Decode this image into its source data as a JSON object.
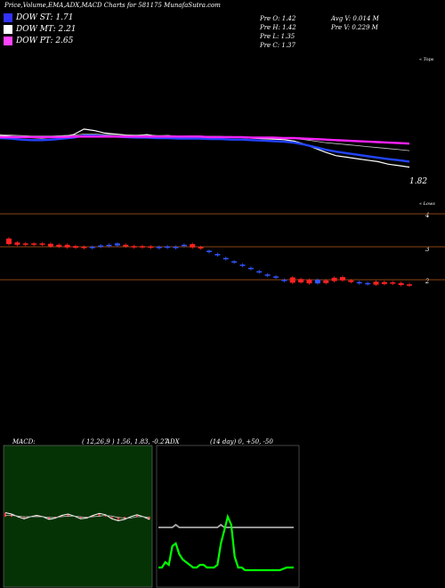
{
  "title": "Price,Volume,EMA,ADX,MACD Charts for 581175 MunafaSutra.com",
  "legend": [
    {
      "label": "DOW ST: 1.71",
      "color": "#3333ff"
    },
    {
      "label": "DOW MT: 2.21",
      "color": "#ffffff"
    },
    {
      "label": "DOW PT: 2.65",
      "color": "#ff44ff"
    }
  ],
  "stats": {
    "pre_o": "Pre   O: 1.42",
    "pre_h": "Pre   H: 1.42",
    "pre_l": "Pre   L: 1.35",
    "pre_c": "Pre   C: 1.37",
    "avg_v": "Avg V: 0.014   M",
    "pre_v": "Pre    V: 0.229 M"
  },
  "top_label": "« Tops",
  "low_label": "« Lows",
  "last_price": "1.82",
  "price_axis": {
    "ticks": [
      "4",
      "3",
      "2"
    ]
  },
  "macd_label": "MACD:",
  "macd_params": "( 12,26,9 ) 1.56,  1.83,  -0.27",
  "adx_label": "ADX",
  "adx_params": "(14  day) 0,  +50,  -50",
  "colors": {
    "ema_blue": "#2244ff",
    "ema_magenta": "#ff22ff",
    "up": "#3355ff",
    "down": "#ff2222",
    "grid_brown": "#8b4513",
    "macd_bg": "#063306",
    "adx_green": "#00ff00"
  },
  "chart_data": [
    {
      "type": "line",
      "name": "ema_panel",
      "ylim": [
        1.6,
        3.2
      ],
      "series": [
        {
          "values": [
            2.45,
            2.44,
            2.42,
            2.41,
            2.4,
            2.42,
            2.43,
            2.47,
            2.58,
            2.55,
            2.5,
            2.48,
            2.46,
            2.45,
            2.47,
            2.44,
            2.45,
            2.43,
            2.44,
            2.44,
            2.43,
            2.43,
            2.42,
            2.41,
            2.4,
            2.39,
            2.38,
            2.37,
            2.34,
            2.28,
            2.2,
            2.12,
            2.05,
            2.02,
            1.99,
            1.96,
            1.93,
            1.88,
            1.85,
            1.82
          ]
        },
        {
          "values": [
            2.4,
            2.39,
            2.37,
            2.36,
            2.36,
            2.37,
            2.39,
            2.41,
            2.45,
            2.45,
            2.44,
            2.43,
            2.42,
            2.41,
            2.41,
            2.4,
            2.4,
            2.39,
            2.39,
            2.39,
            2.38,
            2.38,
            2.37,
            2.37,
            2.36,
            2.35,
            2.34,
            2.33,
            2.31,
            2.27,
            2.22,
            2.17,
            2.13,
            2.1,
            2.07,
            2.04,
            2.01,
            1.98,
            1.96,
            1.93
          ]
        },
        {
          "values": [
            2.47,
            2.46,
            2.45,
            2.44,
            2.44,
            2.44,
            2.45,
            2.46,
            2.48,
            2.48,
            2.47,
            2.47,
            2.46,
            2.46,
            2.46,
            2.45,
            2.45,
            2.44,
            2.44,
            2.44,
            2.43,
            2.43,
            2.43,
            2.42,
            2.42,
            2.41,
            2.41,
            2.4,
            2.39,
            2.37,
            2.34,
            2.31,
            2.29,
            2.27,
            2.25,
            2.23,
            2.21,
            2.19,
            2.17,
            2.15
          ]
        },
        {
          "values": [
            2.42,
            2.42,
            2.42,
            2.42,
            2.42,
            2.42,
            2.42,
            2.43,
            2.43,
            2.43,
            2.43,
            2.43,
            2.43,
            2.43,
            2.43,
            2.43,
            2.43,
            2.43,
            2.43,
            2.43,
            2.42,
            2.42,
            2.42,
            2.42,
            2.41,
            2.41,
            2.41,
            2.4,
            2.4,
            2.39,
            2.38,
            2.37,
            2.36,
            2.35,
            2.34,
            2.33,
            2.32,
            2.31,
            2.3,
            2.29
          ]
        }
      ]
    },
    {
      "type": "candlestick",
      "name": "price_panel",
      "ylim": [
        1.5,
        4.1
      ],
      "candles": [
        [
          3.25,
          3.08,
          "d"
        ],
        [
          3.13,
          3.06,
          "d"
        ],
        [
          3.1,
          3.06,
          "d"
        ],
        [
          3.1,
          3.06,
          "d"
        ],
        [
          3.1,
          3.06,
          "d"
        ],
        [
          3.09,
          3.01,
          "d"
        ],
        [
          3.06,
          3.0,
          "d"
        ],
        [
          3.06,
          2.98,
          "d"
        ],
        [
          3.02,
          2.97,
          "d"
        ],
        [
          3.0,
          2.97,
          "d"
        ],
        [
          3.0,
          2.98,
          "u"
        ],
        [
          3.04,
          3.0,
          "u"
        ],
        [
          3.06,
          3.02,
          "u"
        ],
        [
          3.1,
          3.04,
          "u"
        ],
        [
          3.06,
          3.01,
          "d"
        ],
        [
          3.02,
          2.98,
          "d"
        ],
        [
          3.02,
          2.98,
          "d"
        ],
        [
          3.01,
          2.97,
          "d"
        ],
        [
          3.0,
          2.97,
          "u"
        ],
        [
          3.01,
          2.98,
          "u"
        ],
        [
          3.0,
          2.98,
          "u"
        ],
        [
          3.06,
          3.02,
          "u"
        ],
        [
          3.08,
          2.98,
          "d"
        ],
        [
          2.99,
          2.95,
          "d"
        ],
        [
          2.88,
          2.86,
          "u"
        ],
        [
          2.78,
          2.76,
          "u"
        ],
        [
          2.66,
          2.64,
          "u"
        ],
        [
          2.56,
          2.54,
          "u"
        ],
        [
          2.46,
          2.44,
          "u"
        ],
        [
          2.36,
          2.34,
          "u"
        ],
        [
          2.26,
          2.24,
          "u"
        ],
        [
          2.16,
          2.14,
          "u"
        ],
        [
          2.1,
          2.08,
          "u"
        ],
        [
          2.0,
          1.97,
          "u"
        ],
        [
          2.07,
          1.91,
          "d"
        ],
        [
          2.02,
          1.92,
          "d"
        ],
        [
          2.0,
          1.89,
          "d"
        ],
        [
          2.0,
          1.89,
          "u"
        ],
        [
          1.98,
          1.9,
          "d"
        ],
        [
          2.06,
          1.96,
          "d"
        ],
        [
          2.08,
          1.98,
          "d"
        ],
        [
          1.98,
          1.93,
          "d"
        ],
        [
          1.93,
          1.89,
          "u"
        ],
        [
          1.9,
          1.86,
          "u"
        ],
        [
          1.94,
          1.85,
          "d"
        ],
        [
          1.93,
          1.87,
          "d"
        ],
        [
          1.92,
          1.88,
          "d"
        ],
        [
          1.9,
          1.84,
          "d"
        ],
        [
          1.86,
          1.82,
          "d"
        ]
      ]
    },
    {
      "type": "line",
      "name": "macd_panel",
      "ylim": [
        -1,
        1
      ],
      "series": [
        {
          "values": [
            0.06,
            0.04,
            0.0,
            -0.03,
            0.0,
            0.02,
            0.0,
            -0.04,
            -0.02,
            0.02,
            0.04,
            0.01,
            -0.03,
            -0.02,
            0.02,
            0.05,
            0.03,
            -0.03,
            -0.06,
            -0.04,
            0.0,
            0.03,
            0.0,
            -0.04
          ]
        },
        {
          "values": [
            0.02,
            0.02,
            0.01,
            0.0,
            0.0,
            0.0,
            0.0,
            -0.01,
            -0.01,
            0.0,
            0.01,
            0.01,
            0.0,
            -0.01,
            0.0,
            0.01,
            0.02,
            0.01,
            -0.01,
            -0.02,
            -0.02,
            0.0,
            0.0,
            -0.01
          ]
        }
      ]
    },
    {
      "type": "line",
      "name": "adx_panel",
      "ylim": [
        0,
        100
      ],
      "series": [
        {
          "values": [
            42,
            42,
            42,
            42,
            42,
            44,
            42,
            42,
            42,
            42,
            42,
            42,
            42,
            42,
            42,
            42,
            42,
            42,
            44,
            42,
            42,
            42,
            42,
            42,
            42,
            42,
            42,
            42,
            42,
            42,
            42,
            42,
            42,
            42,
            42,
            42,
            42,
            42,
            42,
            42
          ]
        },
        {
          "values": [
            12,
            12,
            16,
            14,
            28,
            30,
            22,
            18,
            16,
            14,
            12,
            12,
            14,
            14,
            12,
            12,
            12,
            14,
            30,
            40,
            50,
            44,
            20,
            12,
            12,
            10,
            10,
            10,
            10,
            10,
            10,
            10,
            10,
            10,
            10,
            10,
            11,
            12,
            12,
            12
          ]
        }
      ]
    }
  ]
}
